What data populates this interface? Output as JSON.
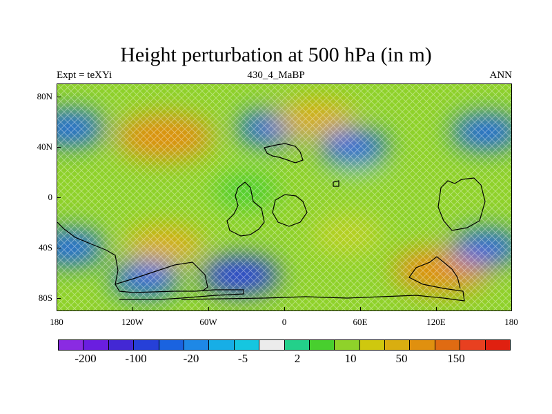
{
  "figure": {
    "title": "Height perturbation at 500 hPa (in m)",
    "subtitle_left": "Expt = teXYi",
    "subtitle_center": "430_4_MaBP",
    "subtitle_right": "ANN"
  },
  "map": {
    "projection": "cylindrical equidistant",
    "lon_range": [
      -180,
      180
    ],
    "lat_range": [
      -90,
      90
    ],
    "lat_ticks": [
      {
        "value": 80,
        "label": "80N"
      },
      {
        "value": 40,
        "label": "40N"
      },
      {
        "value": 0,
        "label": "0"
      },
      {
        "value": -40,
        "label": "40S"
      },
      {
        "value": -80,
        "label": "80S"
      }
    ],
    "lon_ticks": [
      {
        "value": -180,
        "label": "180"
      },
      {
        "value": -120,
        "label": "120W"
      },
      {
        "value": -60,
        "label": "60W"
      },
      {
        "value": 0,
        "label": "0"
      },
      {
        "value": 60,
        "label": "60E"
      },
      {
        "value": 120,
        "label": "120E"
      },
      {
        "value": 180,
        "label": "180"
      }
    ],
    "coastlines": "black outline"
  },
  "colorbar": {
    "labels": [
      "-200",
      "-100",
      "-20",
      "-5",
      "2",
      "10",
      "50",
      "150"
    ],
    "colors": [
      "#8a2be2",
      "#6a1ee0",
      "#4328d4",
      "#2640d8",
      "#1a63e0",
      "#1e88e6",
      "#17aee6",
      "#15c6e0",
      "#ececec",
      "#23d08a",
      "#48cf2e",
      "#8fd22a",
      "#cfc80e",
      "#d9ae10",
      "#e0900f",
      "#e06b12",
      "#e84020",
      "#e02010"
    ]
  },
  "chart_data": {
    "type": "heatmap",
    "title": "Height perturbation at 500 hPa (in m)",
    "field": "Height perturbation at 500 hPa",
    "units": "m",
    "xlim": [
      -180,
      180
    ],
    "ylim": [
      -90,
      90
    ],
    "contour_levels": [
      -200,
      -150,
      -100,
      -50,
      -20,
      -10,
      -5,
      -2,
      2,
      5,
      10,
      20,
      50,
      100,
      150,
      200
    ],
    "features": [
      {
        "lon": -170,
        "lat": 55,
        "value": -20
      },
      {
        "lon": -95,
        "lat": 48,
        "value": 100
      },
      {
        "lon": -10,
        "lat": 55,
        "value": -20
      },
      {
        "lon": 25,
        "lat": 62,
        "value": 50
      },
      {
        "lon": 55,
        "lat": 40,
        "value": -20
      },
      {
        "lon": 160,
        "lat": 52,
        "value": -20
      },
      {
        "lon": 60,
        "lat": 10,
        "value": 10
      },
      {
        "lon": -170,
        "lat": -40,
        "value": -20
      },
      {
        "lon": -95,
        "lat": -38,
        "value": 50
      },
      {
        "lon": -35,
        "lat": -62,
        "value": -50
      },
      {
        "lon": -110,
        "lat": -65,
        "value": -20
      },
      {
        "lon": 125,
        "lat": -58,
        "value": 100
      },
      {
        "lon": 160,
        "lat": -40,
        "value": -20
      },
      {
        "lon": 50,
        "lat": -30,
        "value": 20
      },
      {
        "lon": -30,
        "lat": 5,
        "value": 5
      }
    ]
  }
}
